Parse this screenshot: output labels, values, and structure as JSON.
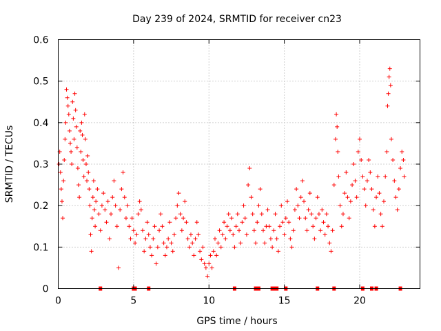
{
  "chart_data": {
    "type": "scatter",
    "title": "Day 239 of 2024, SRMTID for receiver cn23",
    "xlabel": "GPS time / hours",
    "ylabel": "SRMTID / TECUs",
    "xlim": [
      0,
      24
    ],
    "ylim": [
      0,
      0.6
    ],
    "xticks": [
      0,
      5,
      10,
      15,
      20
    ],
    "yticks": [
      0,
      0.1,
      0.2,
      0.3,
      0.4,
      0.5,
      0.6
    ],
    "xtick_labels": [
      "0",
      "5",
      "10",
      "15",
      "20"
    ],
    "ytick_labels": [
      "0",
      "0.1",
      "0.2",
      "0.3",
      "0.4",
      "0.5",
      "0.6"
    ],
    "grid": true,
    "marker": "+",
    "series_color": "#ff0000",
    "series": [
      {
        "name": "SRMTID",
        "points": [
          [
            0.05,
            0.3
          ],
          [
            0.1,
            0.33
          ],
          [
            0.15,
            0.28
          ],
          [
            0.2,
            0.24
          ],
          [
            0.25,
            0.21
          ],
          [
            0.3,
            0.17
          ],
          [
            0.35,
            0.26
          ],
          [
            0.4,
            0.31
          ],
          [
            0.45,
            0.36
          ],
          [
            0.5,
            0.4
          ],
          [
            0.55,
            0.48
          ],
          [
            0.6,
            0.46
          ],
          [
            0.65,
            0.44
          ],
          [
            0.7,
            0.42
          ],
          [
            0.75,
            0.38
          ],
          [
            0.8,
            0.35
          ],
          [
            0.85,
            0.33
          ],
          [
            0.9,
            0.3
          ],
          [
            0.95,
            0.45
          ],
          [
            1.0,
            0.41
          ],
          [
            1.05,
            0.36
          ],
          [
            1.1,
            0.47
          ],
          [
            1.15,
            0.43
          ],
          [
            1.2,
            0.39
          ],
          [
            1.25,
            0.34
          ],
          [
            1.3,
            0.29
          ],
          [
            1.35,
            0.25
          ],
          [
            1.4,
            0.22
          ],
          [
            1.45,
            0.38
          ],
          [
            1.5,
            0.33
          ],
          [
            1.55,
            0.4
          ],
          [
            1.6,
            0.37
          ],
          [
            1.65,
            0.31
          ],
          [
            1.7,
            0.27
          ],
          [
            1.75,
            0.42
          ],
          [
            1.8,
            0.36
          ],
          [
            1.85,
            0.3
          ],
          [
            1.9,
            0.26
          ],
          [
            1.95,
            0.32
          ],
          [
            2.0,
            0.28
          ],
          [
            2.05,
            0.24
          ],
          [
            2.1,
            0.2
          ],
          [
            2.15,
            0.13
          ],
          [
            2.2,
            0.09
          ],
          [
            2.25,
            0.17
          ],
          [
            2.3,
            0.22
          ],
          [
            2.35,
            0.26
          ],
          [
            2.4,
            0.19
          ],
          [
            2.45,
            0.15
          ],
          [
            2.5,
            0.21
          ],
          [
            2.6,
            0.24
          ],
          [
            2.7,
            0.18
          ],
          [
            2.8,
            0.14
          ],
          [
            2.9,
            0.2
          ],
          [
            3.0,
            0.23
          ],
          [
            3.1,
            0.19
          ],
          [
            3.2,
            0.16
          ],
          [
            3.3,
            0.21
          ],
          [
            3.4,
            0.12
          ],
          [
            3.5,
            0.18
          ],
          [
            3.6,
            0.22
          ],
          [
            3.7,
            0.26
          ],
          [
            3.8,
            0.2
          ],
          [
            3.9,
            0.15
          ],
          [
            4.0,
            0.05
          ],
          [
            4.1,
            0.19
          ],
          [
            4.2,
            0.24
          ],
          [
            4.3,
            0.28
          ],
          [
            4.4,
            0.22
          ],
          [
            4.5,
            0.17
          ],
          [
            4.6,
            0.2
          ],
          [
            4.7,
            0.15
          ],
          [
            4.8,
            0.12
          ],
          [
            4.9,
            0.17
          ],
          [
            5.0,
            0.14
          ],
          [
            5.1,
            0.11
          ],
          [
            5.2,
            0.13
          ],
          [
            5.3,
            0.18
          ],
          [
            5.4,
            0.21
          ],
          [
            5.5,
            0.19
          ],
          [
            5.6,
            0.14
          ],
          [
            5.7,
            0.09
          ],
          [
            5.8,
            0.12
          ],
          [
            5.9,
            0.16
          ],
          [
            6.0,
            0.13
          ],
          [
            6.1,
            0.1
          ],
          [
            6.2,
            0.08
          ],
          [
            6.3,
            0.12
          ],
          [
            6.4,
            0.15
          ],
          [
            6.5,
            0.06
          ],
          [
            6.6,
            0.1
          ],
          [
            6.7,
            0.14
          ],
          [
            6.8,
            0.18
          ],
          [
            6.9,
            0.15
          ],
          [
            7.0,
            0.11
          ],
          [
            7.1,
            0.08
          ],
          [
            7.2,
            0.1
          ],
          [
            7.3,
            0.12
          ],
          [
            7.4,
            0.16
          ],
          [
            7.5,
            0.11
          ],
          [
            7.6,
            0.09
          ],
          [
            7.7,
            0.13
          ],
          [
            7.8,
            0.17
          ],
          [
            7.9,
            0.2
          ],
          [
            8.0,
            0.23
          ],
          [
            8.1,
            0.18
          ],
          [
            8.2,
            0.14
          ],
          [
            8.3,
            0.17
          ],
          [
            8.4,
            0.21
          ],
          [
            8.5,
            0.16
          ],
          [
            8.6,
            0.12
          ],
          [
            8.7,
            0.1
          ],
          [
            8.8,
            0.13
          ],
          [
            8.9,
            0.11
          ],
          [
            9.0,
            0.08
          ],
          [
            9.1,
            0.12
          ],
          [
            9.2,
            0.16
          ],
          [
            9.3,
            0.13
          ],
          [
            9.4,
            0.09
          ],
          [
            9.5,
            0.07
          ],
          [
            9.6,
            0.1
          ],
          [
            9.7,
            0.06
          ],
          [
            9.8,
            0.05
          ],
          [
            9.9,
            0.03
          ],
          [
            10.0,
            0.06
          ],
          [
            10.1,
            0.08
          ],
          [
            10.2,
            0.05
          ],
          [
            10.3,
            0.09
          ],
          [
            10.4,
            0.12
          ],
          [
            10.5,
            0.08
          ],
          [
            10.6,
            0.11
          ],
          [
            10.7,
            0.14
          ],
          [
            10.8,
            0.1
          ],
          [
            10.9,
            0.13
          ],
          [
            11.0,
            0.16
          ],
          [
            11.1,
            0.12
          ],
          [
            11.2,
            0.15
          ],
          [
            11.3,
            0.18
          ],
          [
            11.4,
            0.14
          ],
          [
            11.5,
            0.17
          ],
          [
            11.6,
            0.13
          ],
          [
            11.7,
            0.1
          ],
          [
            11.8,
            0.15
          ],
          [
            11.9,
            0.18
          ],
          [
            12.0,
            0.14
          ],
          [
            12.1,
            0.11
          ],
          [
            12.2,
            0.16
          ],
          [
            12.3,
            0.2
          ],
          [
            12.4,
            0.17
          ],
          [
            12.5,
            0.13
          ],
          [
            12.6,
            0.25
          ],
          [
            12.7,
            0.29
          ],
          [
            12.8,
            0.22
          ],
          [
            12.9,
            0.18
          ],
          [
            13.0,
            0.14
          ],
          [
            13.1,
            0.11
          ],
          [
            13.2,
            0.16
          ],
          [
            13.3,
            0.2
          ],
          [
            13.4,
            0.24
          ],
          [
            13.5,
            0.18
          ],
          [
            13.6,
            0.14
          ],
          [
            13.7,
            0.11
          ],
          [
            13.8,
            0.15
          ],
          [
            13.9,
            0.19
          ],
          [
            14.0,
            0.15
          ],
          [
            14.1,
            0.12
          ],
          [
            14.2,
            0.1
          ],
          [
            14.3,
            0.14
          ],
          [
            14.4,
            0.18
          ],
          [
            14.5,
            0.12
          ],
          [
            14.6,
            0.09
          ],
          [
            14.7,
            0.15
          ],
          [
            14.8,
            0.2
          ],
          [
            14.9,
            0.16
          ],
          [
            15.0,
            0.13
          ],
          [
            15.1,
            0.17
          ],
          [
            15.2,
            0.21
          ],
          [
            15.3,
            0.16
          ],
          [
            15.4,
            0.12
          ],
          [
            15.5,
            0.1
          ],
          [
            15.6,
            0.14
          ],
          [
            15.7,
            0.19
          ],
          [
            15.8,
            0.24
          ],
          [
            15.9,
            0.2
          ],
          [
            16.0,
            0.17
          ],
          [
            16.1,
            0.22
          ],
          [
            16.2,
            0.26
          ],
          [
            16.3,
            0.21
          ],
          [
            16.4,
            0.17
          ],
          [
            16.5,
            0.14
          ],
          [
            16.6,
            0.19
          ],
          [
            16.7,
            0.23
          ],
          [
            16.8,
            0.18
          ],
          [
            16.9,
            0.15
          ],
          [
            17.0,
            0.12
          ],
          [
            17.1,
            0.17
          ],
          [
            17.2,
            0.22
          ],
          [
            17.3,
            0.18
          ],
          [
            17.4,
            0.14
          ],
          [
            17.5,
            0.19
          ],
          [
            17.6,
            0.16
          ],
          [
            17.7,
            0.13
          ],
          [
            17.8,
            0.18
          ],
          [
            17.9,
            0.15
          ],
          [
            18.0,
            0.11
          ],
          [
            18.1,
            0.09
          ],
          [
            18.2,
            0.14
          ],
          [
            18.3,
            0.25
          ],
          [
            18.4,
            0.36
          ],
          [
            18.45,
            0.42
          ],
          [
            18.5,
            0.39
          ],
          [
            18.55,
            0.33
          ],
          [
            18.6,
            0.27
          ],
          [
            18.7,
            0.2
          ],
          [
            18.8,
            0.15
          ],
          [
            18.9,
            0.18
          ],
          [
            19.0,
            0.23
          ],
          [
            19.1,
            0.28
          ],
          [
            19.2,
            0.22
          ],
          [
            19.3,
            0.17
          ],
          [
            19.4,
            0.21
          ],
          [
            19.5,
            0.25
          ],
          [
            19.6,
            0.3
          ],
          [
            19.7,
            0.26
          ],
          [
            19.8,
            0.22
          ],
          [
            19.9,
            0.33
          ],
          [
            20.0,
            0.36
          ],
          [
            20.1,
            0.31
          ],
          [
            20.2,
            0.27
          ],
          [
            20.3,
            0.24
          ],
          [
            20.4,
            0.2
          ],
          [
            20.5,
            0.26
          ],
          [
            20.6,
            0.31
          ],
          [
            20.7,
            0.28
          ],
          [
            20.8,
            0.24
          ],
          [
            20.9,
            0.19
          ],
          [
            21.0,
            0.15
          ],
          [
            21.1,
            0.22
          ],
          [
            21.2,
            0.27
          ],
          [
            21.3,
            0.23
          ],
          [
            21.4,
            0.18
          ],
          [
            21.5,
            0.15
          ],
          [
            21.6,
            0.21
          ],
          [
            21.7,
            0.27
          ],
          [
            21.8,
            0.33
          ],
          [
            21.85,
            0.44
          ],
          [
            21.9,
            0.47
          ],
          [
            21.95,
            0.51
          ],
          [
            22.0,
            0.53
          ],
          [
            22.05,
            0.49
          ],
          [
            22.1,
            0.36
          ],
          [
            22.2,
            0.31
          ],
          [
            22.3,
            0.26
          ],
          [
            22.4,
            0.22
          ],
          [
            22.5,
            0.19
          ],
          [
            22.6,
            0.24
          ],
          [
            22.7,
            0.29
          ],
          [
            22.8,
            0.33
          ],
          [
            22.9,
            0.31
          ],
          [
            22.95,
            0.27
          ]
        ],
        "gaps_at_zero": [
          2.8,
          5.0,
          5.1,
          6.0,
          11.7,
          13.1,
          13.3,
          14.2,
          14.3,
          14.5,
          15.1,
          17.2,
          18.3,
          20.2,
          20.8,
          21.1,
          22.7
        ]
      }
    ]
  }
}
